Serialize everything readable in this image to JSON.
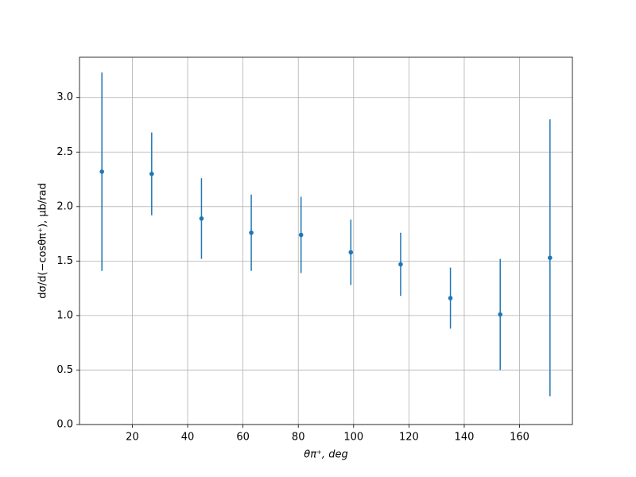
{
  "chart_data": {
    "type": "errorbar",
    "xlabel": "θπ⁺, deg",
    "ylabel": "dσ/d(−cosθπ⁺), μb/rad",
    "x": [
      9,
      27,
      45,
      63,
      81,
      99,
      117,
      135,
      153,
      171
    ],
    "series": [
      {
        "color": "#1f77b4",
        "values": [
          2.32,
          2.3,
          1.89,
          1.76,
          1.74,
          1.58,
          1.47,
          1.16,
          1.01,
          1.53
        ],
        "errors": [
          0.91,
          0.38,
          0.37,
          0.35,
          0.35,
          0.3,
          0.29,
          0.28,
          0.51,
          1.27
        ]
      }
    ],
    "xlim": [
      0.9,
      179.1
    ],
    "ylim": [
      0,
      3.37
    ],
    "xticks": [
      20,
      40,
      60,
      80,
      100,
      120,
      140,
      160
    ],
    "yticks": [
      {
        "value": 0,
        "label": "0.0"
      },
      0.5,
      {
        "value": 1,
        "label": "1.0"
      },
      1.5,
      {
        "value": 2,
        "label": "2.0"
      },
      2.5,
      {
        "value": 3,
        "label": "3.0"
      }
    ],
    "grid": true
  }
}
